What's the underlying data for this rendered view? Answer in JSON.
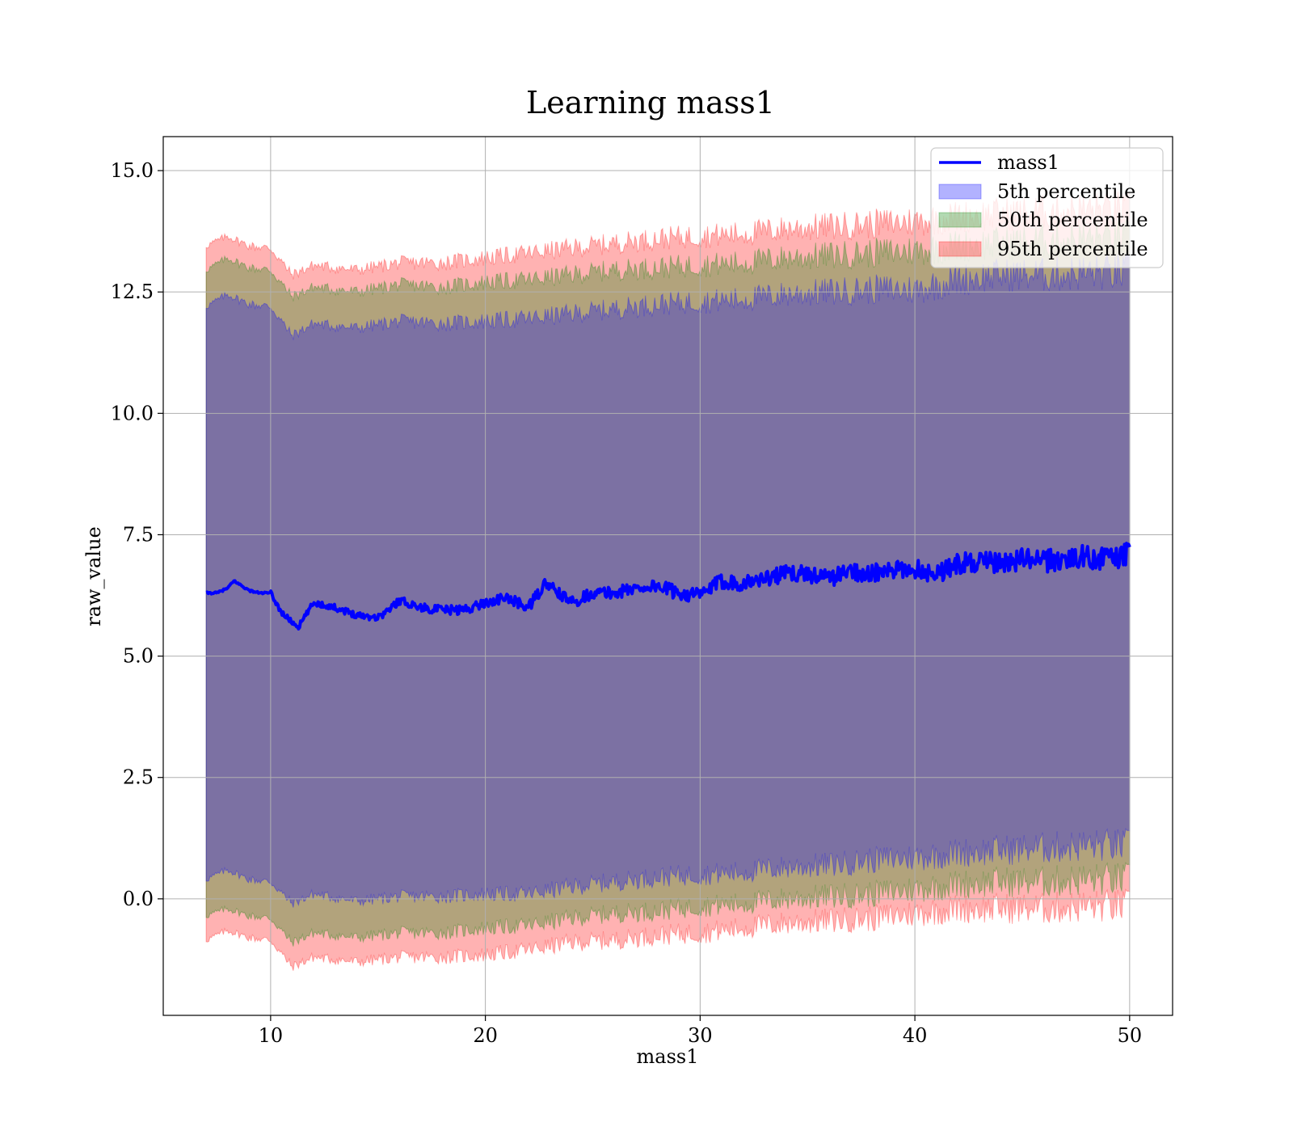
{
  "chart_data": {
    "type": "area",
    "title": "Learning mass1",
    "xlabel": "mass1",
    "ylabel": "raw_value",
    "xlim": [
      5,
      52
    ],
    "ylim": [
      -2.4,
      15.7
    ],
    "grid": true,
    "legend_position": "top-right",
    "x_ticks": [
      10,
      20,
      30,
      40,
      50
    ],
    "x_tick_labels": [
      "10",
      "20",
      "30",
      "40",
      "50"
    ],
    "y_ticks": [
      0,
      2.5,
      5,
      7.5,
      10,
      12.5,
      15
    ],
    "y_tick_labels": [
      "0.0",
      "2.5",
      "5.0",
      "7.5",
      "10.0",
      "12.5",
      "15.0"
    ],
    "colors": {
      "line": "#0000ff",
      "band_5th": "#0000ff",
      "band_50th": "#008000",
      "band_95th": "#ff0000"
    },
    "series": [
      {
        "name": "mass1",
        "kind": "line",
        "x": [
          7.0,
          7.5,
          8.0,
          8.3,
          9.0,
          9.5,
          10.0,
          10.5,
          11.0,
          11.3,
          12.0,
          13.0,
          14.0,
          15.0,
          15.5,
          16.0,
          17.0,
          18.0,
          19.0,
          20.0,
          21.0,
          22.0,
          22.8,
          24.0,
          25.0,
          26.0,
          27.0,
          28.0,
          29.0,
          30.0,
          31.0,
          32.0,
          33.0,
          34.0,
          35.0,
          36.0,
          37.0,
          38.0,
          39.0,
          40.0,
          41.0,
          42.0,
          43.0,
          44.0,
          45.0,
          46.0,
          47.0,
          48.0,
          49.0,
          50.0
        ],
        "y": [
          6.3,
          6.3,
          6.4,
          6.55,
          6.35,
          6.3,
          6.3,
          5.9,
          5.7,
          5.6,
          6.1,
          6.0,
          5.85,
          5.8,
          5.95,
          6.15,
          6.0,
          5.95,
          5.95,
          6.1,
          6.2,
          6.0,
          6.5,
          6.1,
          6.3,
          6.3,
          6.4,
          6.45,
          6.3,
          6.25,
          6.55,
          6.5,
          6.6,
          6.7,
          6.7,
          6.6,
          6.75,
          6.7,
          6.75,
          6.8,
          6.7,
          6.9,
          6.95,
          6.9,
          7.0,
          6.95,
          7.0,
          7.05,
          7.0,
          7.1
        ]
      },
      {
        "name": "5th percentile",
        "kind": "band",
        "x": [
          7.0,
          8.0,
          9.0,
          10.0,
          11.0,
          12.0,
          14.0,
          16.0,
          18.0,
          20.0,
          22.0,
          24.0,
          26.0,
          28.0,
          30.0,
          32.0,
          34.0,
          36.0,
          38.0,
          40.0,
          42.0,
          44.0,
          46.0,
          48.0,
          50.0
        ],
        "lower": [
          0.4,
          0.6,
          0.4,
          0.35,
          -0.1,
          0.1,
          -0.05,
          0.05,
          0.05,
          0.1,
          0.1,
          0.25,
          0.35,
          0.45,
          0.5,
          0.55,
          0.65,
          0.7,
          0.8,
          0.85,
          0.95,
          1.0,
          1.05,
          1.1,
          1.1
        ],
        "upper": [
          12.2,
          12.45,
          12.25,
          12.2,
          11.6,
          11.85,
          11.75,
          11.9,
          11.85,
          11.9,
          11.95,
          12.05,
          12.15,
          12.25,
          12.3,
          12.35,
          12.45,
          12.5,
          12.55,
          12.55,
          12.75,
          12.85,
          12.85,
          12.9,
          12.9
        ]
      },
      {
        "name": "50th percentile",
        "kind": "band",
        "x": [
          7.0,
          8.0,
          9.0,
          10.0,
          11.0,
          12.0,
          14.0,
          16.0,
          18.0,
          20.0,
          22.0,
          24.0,
          26.0,
          28.0,
          30.0,
          32.0,
          34.0,
          36.0,
          38.0,
          40.0,
          42.0,
          44.0,
          46.0,
          48.0,
          50.0
        ],
        "lower": [
          -0.35,
          -0.2,
          -0.35,
          -0.4,
          -0.9,
          -0.7,
          -0.8,
          -0.7,
          -0.7,
          -0.6,
          -0.55,
          -0.4,
          -0.3,
          -0.25,
          -0.15,
          -0.1,
          0.0,
          0.05,
          0.1,
          0.2,
          0.3,
          0.35,
          0.35,
          0.4,
          0.4
        ],
        "upper": [
          12.95,
          13.2,
          13.0,
          12.95,
          12.4,
          12.6,
          12.5,
          12.65,
          12.6,
          12.7,
          12.75,
          12.85,
          12.95,
          13.0,
          13.05,
          13.1,
          13.2,
          13.25,
          13.3,
          13.35,
          13.45,
          13.5,
          13.55,
          13.6,
          13.6
        ]
      },
      {
        "name": "95th percentile",
        "kind": "band",
        "x": [
          7.0,
          8.0,
          9.0,
          10.0,
          11.0,
          12.0,
          14.0,
          16.0,
          18.0,
          20.0,
          22.0,
          24.0,
          26.0,
          28.0,
          30.0,
          32.0,
          34.0,
          36.0,
          38.0,
          40.0,
          42.0,
          44.0,
          46.0,
          48.0,
          50.0
        ],
        "lower": [
          -0.85,
          -0.65,
          -0.8,
          -0.85,
          -1.4,
          -1.2,
          -1.3,
          -1.2,
          -1.2,
          -1.15,
          -1.05,
          -0.9,
          -0.85,
          -0.75,
          -0.7,
          -0.6,
          -0.5,
          -0.45,
          -0.4,
          -0.3,
          -0.2,
          -0.2,
          -0.2,
          -0.15,
          -0.15
        ],
        "upper": [
          13.45,
          13.65,
          13.45,
          13.4,
          12.85,
          13.05,
          12.95,
          13.1,
          13.1,
          13.2,
          13.3,
          13.4,
          13.5,
          13.6,
          13.65,
          13.7,
          13.8,
          13.85,
          13.9,
          13.95,
          14.05,
          14.1,
          14.15,
          14.2,
          14.2
        ]
      }
    ]
  }
}
